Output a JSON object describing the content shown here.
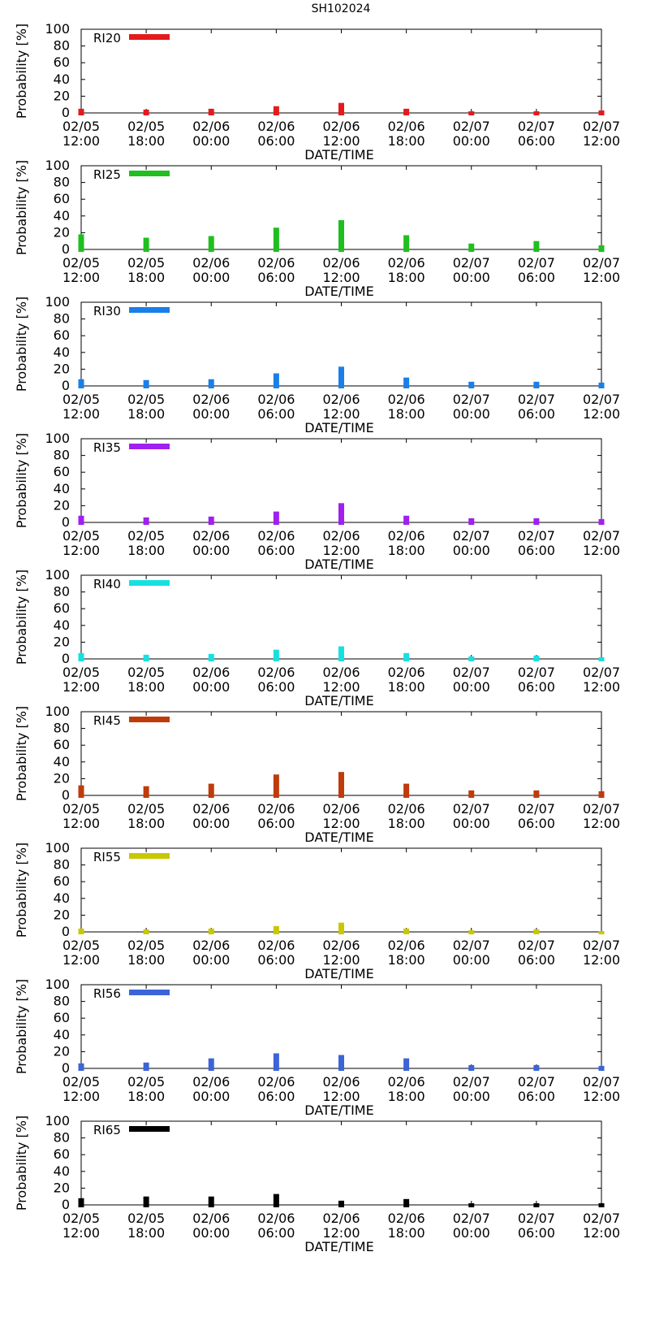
{
  "chart_data": {
    "type": "bar",
    "title": "SH102024",
    "xlabel": "DATE/TIME",
    "ylabel": "Probability [%]",
    "ylim": [
      0,
      100
    ],
    "yticks": [
      0,
      20,
      40,
      60,
      80,
      100
    ],
    "xticks": [
      {
        "date": "02/05",
        "time": "12:00"
      },
      {
        "date": "02/05",
        "time": "18:00"
      },
      {
        "date": "02/06",
        "time": "00:00"
      },
      {
        "date": "02/06",
        "time": "06:00"
      },
      {
        "date": "02/06",
        "time": "12:00"
      },
      {
        "date": "02/06",
        "time": "18:00"
      },
      {
        "date": "02/07",
        "time": "00:00"
      },
      {
        "date": "02/07",
        "time": "06:00"
      },
      {
        "date": "02/07",
        "time": "12:00"
      }
    ],
    "legend_position": "top-left",
    "panels": [
      {
        "name": "RI20",
        "color": "#e41a1c",
        "values": [
          5,
          4,
          5,
          8,
          12,
          5,
          2,
          2,
          3
        ]
      },
      {
        "name": "RI25",
        "color": "#1fbf1f",
        "values": [
          18,
          14,
          16,
          26,
          35,
          17,
          7,
          10,
          5
        ]
      },
      {
        "name": "RI30",
        "color": "#1a7fe8",
        "values": [
          8,
          7,
          8,
          15,
          23,
          10,
          5,
          5,
          4
        ]
      },
      {
        "name": "RI35",
        "color": "#a020f0",
        "values": [
          8,
          6,
          7,
          13,
          23,
          8,
          5,
          5,
          4
        ]
      },
      {
        "name": "RI40",
        "color": "#17e0e0",
        "values": [
          7,
          5,
          6,
          11,
          15,
          7,
          3,
          4,
          2
        ]
      },
      {
        "name": "RI45",
        "color": "#bf3b0b",
        "values": [
          12,
          11,
          14,
          25,
          28,
          14,
          6,
          6,
          5
        ]
      },
      {
        "name": "RI55",
        "color": "#c8c800",
        "values": [
          4,
          3,
          4,
          7,
          11,
          4,
          2,
          3,
          1
        ]
      },
      {
        "name": "RI56",
        "color": "#3c64d8",
        "values": [
          6,
          7,
          12,
          18,
          16,
          12,
          4,
          4,
          3
        ]
      },
      {
        "name": "RI65",
        "color": "#000000",
        "values": [
          8,
          10,
          10,
          13,
          5,
          7,
          2,
          2,
          2
        ]
      }
    ]
  }
}
